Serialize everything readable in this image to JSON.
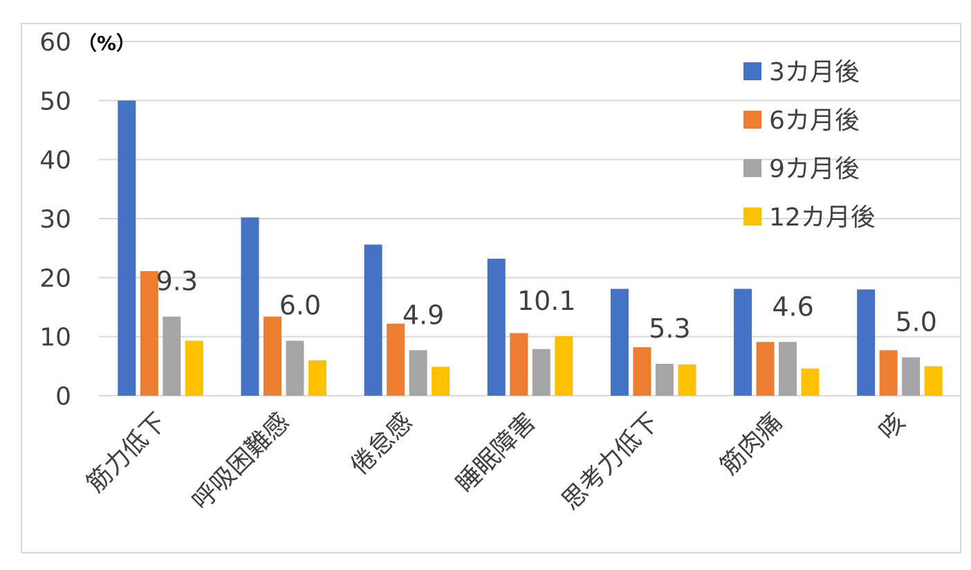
{
  "chart_data": {
    "type": "bar",
    "unit_label": "（%）",
    "ylim": [
      0,
      60
    ],
    "yticks": [
      0,
      10,
      20,
      30,
      40,
      50,
      60
    ],
    "grid": true,
    "legend_position": "top-right",
    "categories": [
      "筋力低下",
      "呼吸困難感",
      "倦怠感",
      "睡眠障害",
      "思考力低下",
      "筋肉痛",
      "咳"
    ],
    "series": [
      {
        "name": "3カ月後",
        "color": "#4472C4",
        "values": [
          50.0,
          30.2,
          25.6,
          23.2,
          18.1,
          18.1,
          18.0
        ]
      },
      {
        "name": "6カ月後",
        "color": "#ED7D31",
        "values": [
          21.1,
          13.4,
          12.2,
          10.6,
          8.2,
          9.1,
          7.7
        ]
      },
      {
        "name": "9カ月後",
        "color": "#A5A5A5",
        "values": [
          13.4,
          9.3,
          7.7,
          7.9,
          5.4,
          9.1,
          6.5
        ]
      },
      {
        "name": "12カ月後",
        "color": "#FFC000",
        "values": [
          9.3,
          6.0,
          4.9,
          10.1,
          5.3,
          4.6,
          5.0
        ]
      }
    ],
    "data_labels": [
      "9.3",
      "6.0",
      "4.9",
      "10.1",
      "5.3",
      "4.6",
      "5.0"
    ]
  }
}
